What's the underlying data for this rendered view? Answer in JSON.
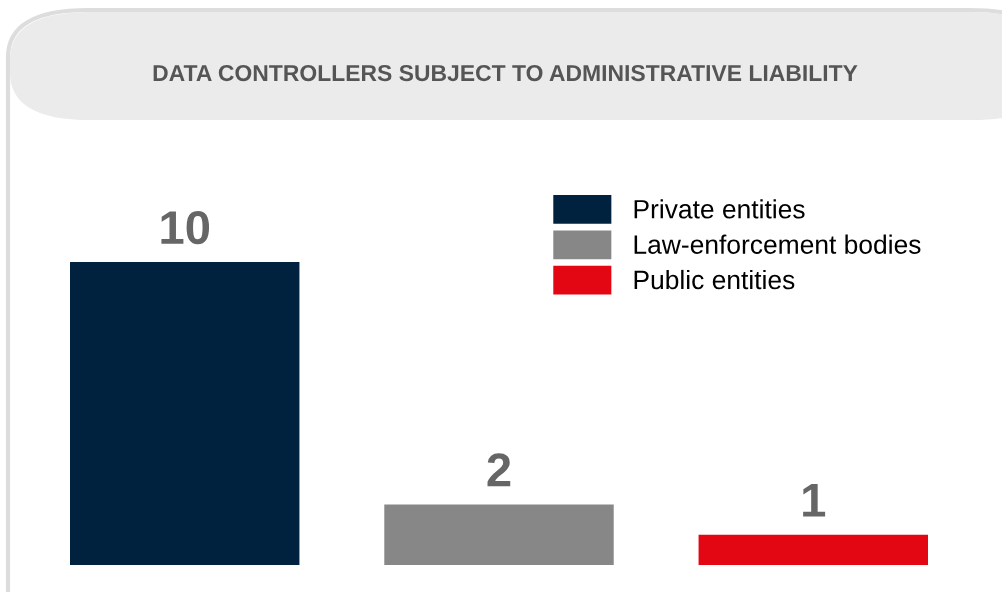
{
  "chart_data": {
    "type": "bar",
    "title": "DATA CONTROLLERS SUBJECT TO ADMINISTRATIVE LIABILITY",
    "categories": [
      null,
      null,
      null
    ],
    "stacked": true,
    "series": [
      {
        "name": "Private entities",
        "color": "#00223f",
        "values": [
          10,
          null,
          null
        ]
      },
      {
        "name": "Law-enforcement bodies",
        "color": "#878787",
        "values": [
          null,
          2,
          null
        ]
      },
      {
        "name": "Public entities",
        "color": "#e30613",
        "values": [
          null,
          null,
          1
        ]
      }
    ],
    "data_labels": true,
    "legend": "top right",
    "grid": false,
    "tick_labels": false
  }
}
